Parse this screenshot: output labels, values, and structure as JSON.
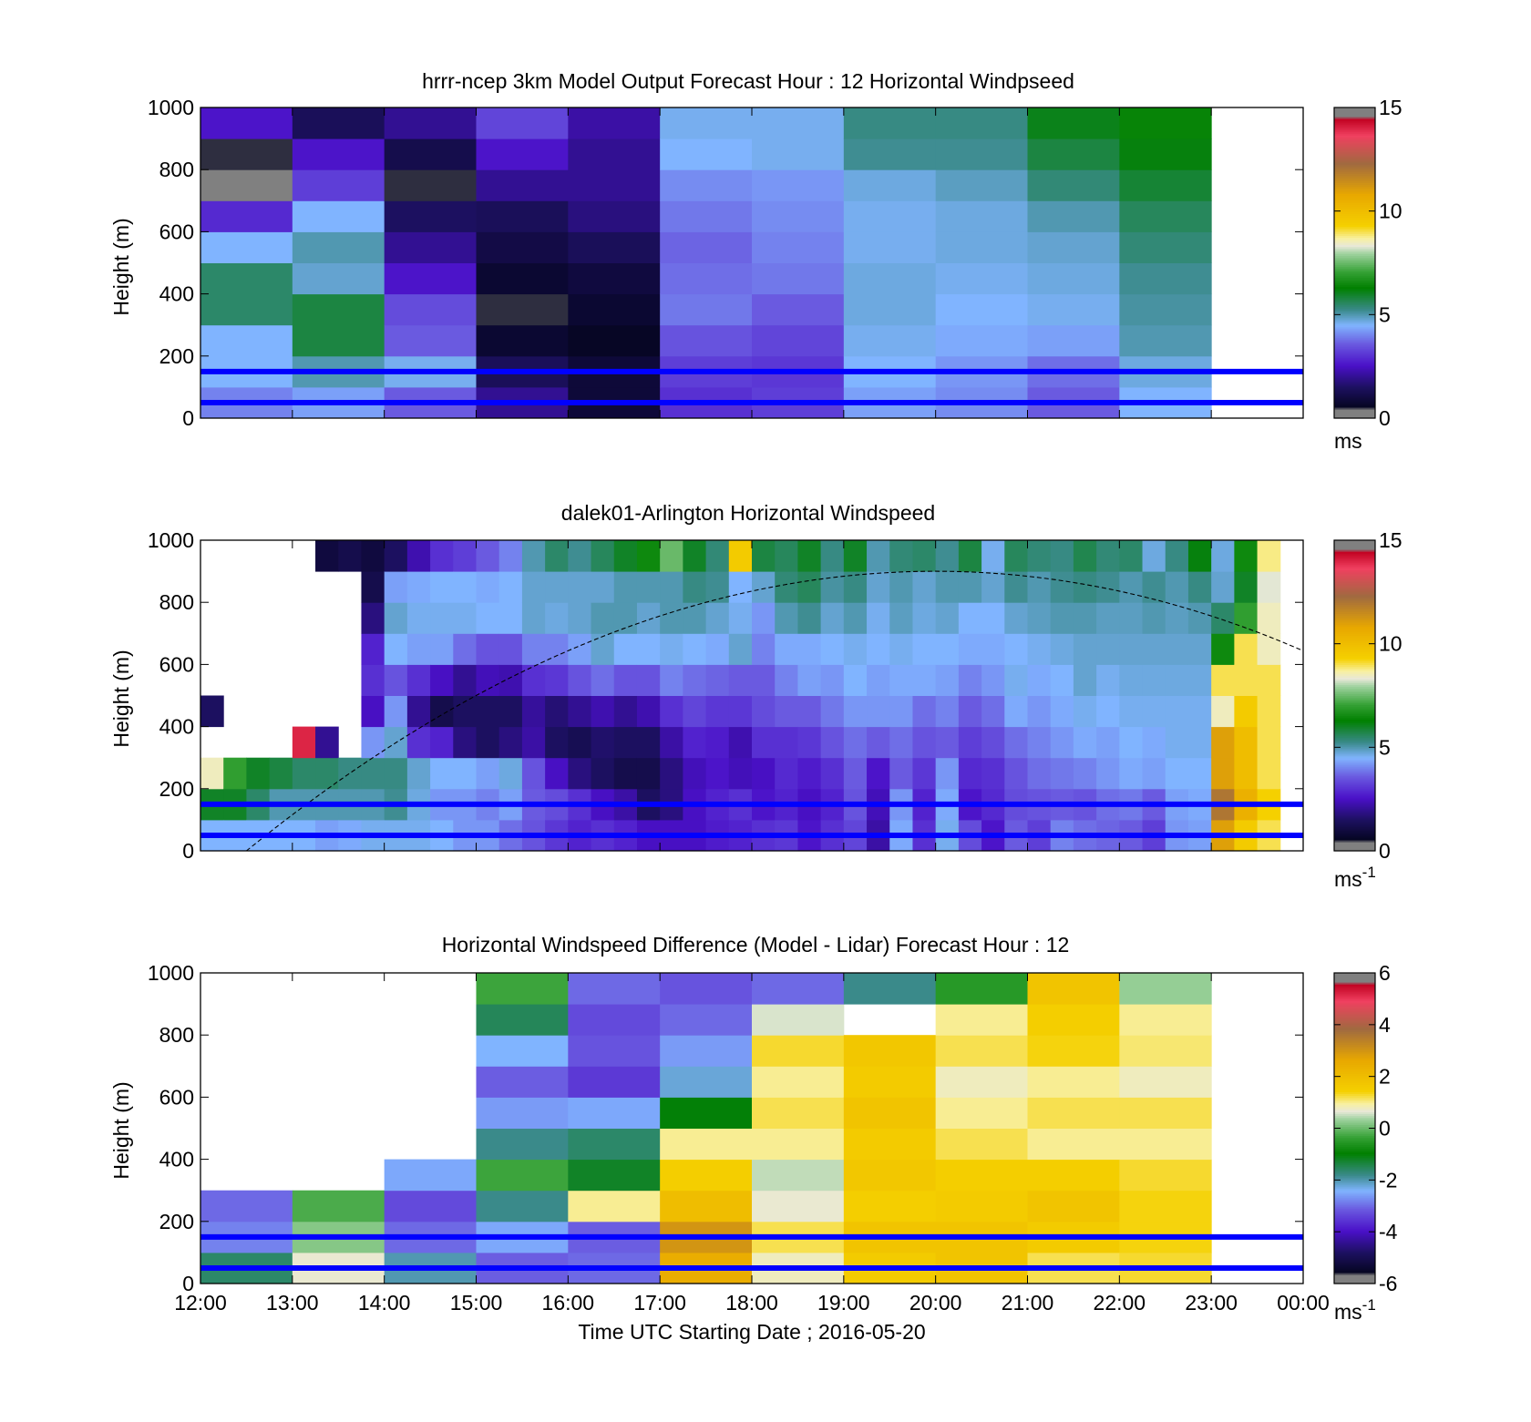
{
  "chart_data": [
    {
      "type": "heatmap",
      "title": "hrrr-ncep 3km Model Output   Forecast Hour : 12 Horizontal Windpseed",
      "ylabel": "Height (m)",
      "xlabel": "",
      "x_ticks": [
        "12:00",
        "13:00",
        "14:00",
        "15:00",
        "16:00",
        "17:00",
        "18:00",
        "19:00",
        "20:00",
        "21:00",
        "22:00",
        "23:00",
        "00:00"
      ],
      "x_range_hours": [
        12,
        24
      ],
      "ylim": [
        0,
        1000
      ],
      "y_ticks": [
        0,
        200,
        400,
        600,
        800,
        1000
      ],
      "reference_lines_m": [
        50,
        150
      ],
      "colorbar": {
        "range": [
          0,
          15
        ],
        "ticks": [
          0,
          5,
          10,
          15
        ],
        "unit": "ms",
        "unit_sup": ""
      },
      "cell_height_m": 100,
      "columns": [
        {
          "x_start": 12,
          "x_end": 13,
          "values": [
            4.0,
            4.5,
            4.5,
            5.5,
            5.5,
            4.5,
            2.9,
            0.4,
            0.5,
            2.6
          ]
        },
        {
          "x_start": 13,
          "x_end": 14,
          "values": [
            4.3,
            5.0,
            5.8,
            5.8,
            4.8,
            5.0,
            4.5,
            3.2,
            2.6,
            1.4
          ]
        },
        {
          "x_start": 14,
          "x_end": 15,
          "values": [
            3.6,
            4.6,
            3.6,
            3.4,
            2.6,
            2.0,
            1.5,
            0.5,
            1.2,
            2.0
          ]
        },
        {
          "x_start": 15,
          "x_end": 16,
          "values": [
            2.0,
            1.4,
            0.8,
            0.5,
            0.8,
            1.1,
            1.4,
            2.0,
            2.6,
            3.3
          ]
        },
        {
          "x_start": 16,
          "x_end": 17,
          "values": [
            0.9,
            0.9,
            0.6,
            0.8,
            1.0,
            1.4,
            1.8,
            2.0,
            2.0,
            2.2
          ]
        },
        {
          "x_start": 17,
          "x_end": 18,
          "values": [
            3.0,
            3.2,
            3.5,
            3.9,
            3.8,
            3.7,
            3.9,
            4.1,
            4.5,
            4.6
          ]
        },
        {
          "x_start": 18,
          "x_end": 19,
          "values": [
            3.2,
            3.1,
            3.3,
            3.6,
            3.9,
            4.0,
            4.1,
            4.2,
            4.6,
            4.6
          ]
        },
        {
          "x_start": 19,
          "x_end": 20,
          "values": [
            4.3,
            4.5,
            4.6,
            4.7,
            4.7,
            4.6,
            4.6,
            4.7,
            5.2,
            5.3
          ]
        },
        {
          "x_start": 20,
          "x_end": 21,
          "values": [
            4.1,
            4.2,
            4.4,
            4.5,
            4.6,
            4.7,
            4.7,
            4.9,
            5.2,
            5.3
          ]
        },
        {
          "x_start": 21,
          "x_end": 22,
          "values": [
            3.6,
            3.8,
            4.3,
            4.6,
            4.7,
            4.8,
            5.0,
            5.4,
            5.8,
            6.1
          ]
        },
        {
          "x_start": 22,
          "x_end": 23,
          "values": [
            4.5,
            4.7,
            5.0,
            5.1,
            5.2,
            5.4,
            5.6,
            5.9,
            6.2,
            6.4
          ]
        }
      ]
    },
    {
      "type": "heatmap",
      "title": "dalek01-Arlington  Horizontal Windspeed",
      "ylabel": "Height (m)",
      "xlabel": "",
      "x_ticks": [
        "12:00",
        "13:00",
        "14:00",
        "15:00",
        "16:00",
        "17:00",
        "18:00",
        "19:00",
        "20:00",
        "21:00",
        "22:00",
        "23:00",
        "00:00"
      ],
      "x_range_hours": [
        12,
        24
      ],
      "ylim": [
        0,
        1000
      ],
      "y_ticks": [
        0,
        200,
        400,
        600,
        800,
        1000
      ],
      "reference_lines_m": [
        50,
        150
      ],
      "colorbar": {
        "range": [
          0,
          15
        ],
        "ticks": [
          0,
          5,
          10,
          15
        ],
        "unit": "ms",
        "unit_sup": "-1"
      },
      "cell_height_m": 100,
      "column_width_h": 0.25,
      "columns_start_h": 12.0,
      "columns": [
        [
          4.5,
          6.0,
          8.5,
          null,
          1.5,
          null,
          null,
          null,
          null,
          null
        ],
        [
          4.5,
          6.0,
          7.0,
          null,
          null,
          null,
          null,
          null,
          null,
          null
        ],
        [
          4.5,
          5.5,
          6.0,
          null,
          null,
          null,
          null,
          null,
          null,
          null
        ],
        [
          4.5,
          5.0,
          5.8,
          null,
          null,
          null,
          null,
          null,
          null,
          null
        ],
        [
          4.5,
          5.0,
          5.5,
          14.0,
          null,
          null,
          null,
          null,
          null,
          null
        ],
        [
          4.3,
          5.0,
          5.5,
          2.0,
          null,
          null,
          null,
          null,
          null,
          1.0
        ],
        [
          4.4,
          5.0,
          5.3,
          null,
          null,
          null,
          null,
          null,
          null,
          1.2
        ],
        [
          4.6,
          5.0,
          5.3,
          4.2,
          2.5,
          3.0,
          2.8,
          1.8,
          1.2,
          1.0
        ],
        [
          4.6,
          5.2,
          5.3,
          4.8,
          4.2,
          3.5,
          4.5,
          4.8,
          4.3,
          1.5
        ],
        [
          4.6,
          4.7,
          4.8,
          3.0,
          2.0,
          3.0,
          4.3,
          4.6,
          4.4,
          2.3
        ],
        [
          4.5,
          4.2,
          4.5,
          2.8,
          1.2,
          2.5,
          4.3,
          4.6,
          4.5,
          3.0
        ],
        [
          4.2,
          4.2,
          4.5,
          1.8,
          1.5,
          2.0,
          3.8,
          4.6,
          4.5,
          3.2
        ],
        [
          4.2,
          4.0,
          4.3,
          1.5,
          1.5,
          2.4,
          3.5,
          4.5,
          4.4,
          3.6
        ],
        [
          3.8,
          4.3,
          4.7,
          1.8,
          1.5,
          2.3,
          3.5,
          4.5,
          4.5,
          4.0
        ],
        [
          3.5,
          3.6,
          3.5,
          2.2,
          2.1,
          3.0,
          4.0,
          4.8,
          4.8,
          5.0
        ],
        [
          3.1,
          3.4,
          2.5,
          1.5,
          1.7,
          3.1,
          4.0,
          4.7,
          4.8,
          5.5
        ],
        [
          2.8,
          3.0,
          1.8,
          1.3,
          2.0,
          3.5,
          4.3,
          4.8,
          4.8,
          5.2
        ],
        [
          3.0,
          2.5,
          1.5,
          1.6,
          2.3,
          3.8,
          4.8,
          5.0,
          4.8,
          5.6
        ],
        [
          2.8,
          2.2,
          1.2,
          1.5,
          2.0,
          3.5,
          4.5,
          5.0,
          5.0,
          6.0
        ],
        [
          2.5,
          1.5,
          1.2,
          1.5,
          2.3,
          3.5,
          4.5,
          4.8,
          5.0,
          6.5
        ],
        [
          2.5,
          1.8,
          1.8,
          2.2,
          3.0,
          4.0,
          4.6,
          5.0,
          5.0,
          7.5
        ],
        [
          2.5,
          2.5,
          2.4,
          2.8,
          3.3,
          3.8,
          4.5,
          5.0,
          5.3,
          6.0
        ],
        [
          2.7,
          2.8,
          2.6,
          2.7,
          3.1,
          3.7,
          4.4,
          4.8,
          5.2,
          5.4
        ],
        [
          2.8,
          3.0,
          2.4,
          2.3,
          3.1,
          3.6,
          4.8,
          4.6,
          4.5,
          9.5
        ],
        [
          3.0,
          2.6,
          2.5,
          3.0,
          3.4,
          3.6,
          4.0,
          4.2,
          4.8,
          5.8
        ],
        [
          3.1,
          2.8,
          2.9,
          3.0,
          3.6,
          4.0,
          4.4,
          5.0,
          5.4,
          5.6
        ],
        [
          2.6,
          2.5,
          2.7,
          3.1,
          3.6,
          4.3,
          4.4,
          5.2,
          5.6,
          6.0
        ],
        [
          3.0,
          2.8,
          3.0,
          3.5,
          3.9,
          4.2,
          4.5,
          4.8,
          5.1,
          5.3
        ],
        [
          3.3,
          3.5,
          3.6,
          3.8,
          4.2,
          4.5,
          4.6,
          5.0,
          5.3,
          6.0
        ],
        [
          2.2,
          2.4,
          2.6,
          3.6,
          4.2,
          4.3,
          4.5,
          4.6,
          4.8,
          5.0
        ],
        [
          4.4,
          4.2,
          3.6,
          3.8,
          4.2,
          4.4,
          4.6,
          4.9,
          5.0,
          5.4
        ],
        [
          3.0,
          2.8,
          3.1,
          3.5,
          3.8,
          4.4,
          4.5,
          4.7,
          4.8,
          5.5
        ],
        [
          4.6,
          4.4,
          4.2,
          3.6,
          4.0,
          4.3,
          4.5,
          4.8,
          5.0,
          5.2
        ],
        [
          3.4,
          2.6,
          2.9,
          3.2,
          3.6,
          4.0,
          4.4,
          4.5,
          5.0,
          5.8
        ],
        [
          2.6,
          2.9,
          3.0,
          3.4,
          3.8,
          4.2,
          4.4,
          4.5,
          4.8,
          4.6
        ],
        [
          3.6,
          3.4,
          3.5,
          3.8,
          4.4,
          4.6,
          4.5,
          4.8,
          5.2,
          5.6
        ],
        [
          3.2,
          3.5,
          3.8,
          4.0,
          4.2,
          4.4,
          4.6,
          4.9,
          5.0,
          5.4
        ],
        [
          4.0,
          3.6,
          3.9,
          4.2,
          4.4,
          4.5,
          4.7,
          5.0,
          5.2,
          5.3
        ],
        [
          3.8,
          3.5,
          4.0,
          4.4,
          4.6,
          4.8,
          4.8,
          5.0,
          5.3,
          5.7
        ],
        [
          3.7,
          3.8,
          4.2,
          4.3,
          4.5,
          4.6,
          4.8,
          4.9,
          5.2,
          5.4
        ],
        [
          3.6,
          3.9,
          4.4,
          4.5,
          4.6,
          4.7,
          4.8,
          4.9,
          5.0,
          5.5
        ],
        [
          3.2,
          3.6,
          4.3,
          4.4,
          4.6,
          4.7,
          4.8,
          5.0,
          5.2,
          4.7
        ],
        [
          4.2,
          4.3,
          4.5,
          4.6,
          4.6,
          4.7,
          4.8,
          4.9,
          5.0,
          5.3
        ],
        [
          4.3,
          4.4,
          4.5,
          4.6,
          4.6,
          4.7,
          4.8,
          5.0,
          5.3,
          6.2
        ],
        [
          11.0,
          12.0,
          11.0,
          11.0,
          8.5,
          9.0,
          6.5,
          5.5,
          4.8,
          4.7
        ],
        [
          9.5,
          10.5,
          10.0,
          10.0,
          9.5,
          9.0,
          9.0,
          7.0,
          6.0,
          6.5
        ],
        [
          9.0,
          9.3,
          9.0,
          9.0,
          9.0,
          9.0,
          8.5,
          8.5,
          8.3,
          8.8
        ]
      ]
    },
    {
      "type": "heatmap",
      "title": "Horizontal Windspeed Difference (Model - Lidar) Forecast Hour : 12",
      "ylabel": "Height (m)",
      "xlabel": "Time UTC  Starting Date ; 2016-05-20",
      "x_ticks": [
        "12:00",
        "13:00",
        "14:00",
        "15:00",
        "16:00",
        "17:00",
        "18:00",
        "19:00",
        "20:00",
        "21:00",
        "22:00",
        "23:00",
        "00:00"
      ],
      "x_range_hours": [
        12,
        24
      ],
      "ylim": [
        0,
        1000
      ],
      "y_ticks": [
        0,
        200,
        400,
        600,
        800,
        1000
      ],
      "reference_lines_m": [
        50,
        150
      ],
      "colorbar": {
        "range": [
          -6,
          6
        ],
        "ticks": [
          -6,
          -4,
          -2,
          0,
          2,
          4,
          6
        ],
        "unit": "ms",
        "unit_sup": "-1"
      },
      "cell_height_m": 100,
      "columns": [
        {
          "x_start": 12,
          "x_end": 13,
          "values": [
            -1.6,
            -2.8,
            -3.0,
            null,
            null,
            null,
            null,
            null,
            null,
            null
          ]
        },
        {
          "x_start": 13,
          "x_end": 14,
          "values": [
            0.7,
            0.2,
            -0.2,
            null,
            null,
            null,
            null,
            null,
            null,
            null
          ]
        },
        {
          "x_start": 14,
          "x_end": 15,
          "values": [
            -2.0,
            -3.0,
            -3.3,
            -2.5,
            null,
            null,
            null,
            null,
            null,
            null
          ]
        },
        {
          "x_start": 15,
          "x_end": 16,
          "values": [
            -3.1,
            -2.5,
            -1.8,
            -0.3,
            -1.8,
            -2.6,
            -3.1,
            -2.4,
            -1.5,
            -0.3
          ]
        },
        {
          "x_start": 16,
          "x_end": 17,
          "values": [
            -3.0,
            -3.1,
            1.0,
            -1.2,
            -1.6,
            -2.5,
            -3.5,
            -3.2,
            -3.3,
            -3.0
          ]
        },
        {
          "x_start": 17,
          "x_end": 18,
          "values": [
            2.5,
            3.0,
            2.0,
            1.5,
            1.0,
            -1.0,
            -2.2,
            -2.6,
            -3.0,
            -3.2
          ]
        },
        {
          "x_start": 18,
          "x_end": 19,
          "values": [
            0.8,
            1.2,
            0.7,
            0.5,
            1.0,
            1.2,
            1.0,
            1.3,
            0.6,
            -3.0
          ]
        },
        {
          "x_start": 19,
          "x_end": 20,
          "values": [
            1.6,
            1.8,
            1.5,
            1.7,
            1.6,
            1.8,
            1.6,
            1.7,
            null,
            -1.8
          ]
        },
        {
          "x_start": 20,
          "x_end": 21,
          "values": [
            1.8,
            1.8,
            1.6,
            1.5,
            1.2,
            1.0,
            0.8,
            1.2,
            1.0,
            -0.5
          ]
        },
        {
          "x_start": 21,
          "x_end": 22,
          "values": [
            1.2,
            1.6,
            1.8,
            1.5,
            1.0,
            1.2,
            1.0,
            1.4,
            1.5,
            1.8
          ]
        },
        {
          "x_start": 22,
          "x_end": 23,
          "values": [
            1.3,
            1.4,
            1.4,
            1.3,
            1.0,
            1.2,
            0.8,
            1.1,
            1.0,
            0.3
          ]
        }
      ]
    }
  ]
}
